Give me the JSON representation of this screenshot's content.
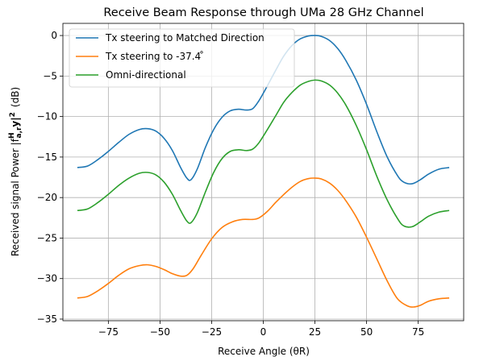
{
  "chart_data": {
    "type": "line",
    "title": "Receive Beam Response through UMa 28 GHz Channel",
    "xlabel": "Receive Angle (θR)",
    "ylabel_main": "Received signal Power |f",
    "ylabel_formula": "a,r",
    "ylabel_formula_sup": "H",
    "ylabel_tail": "y|",
    "ylabel_exp": "2",
    "ylabel_unit": "(dB)",
    "xlim": [
      -97,
      97
    ],
    "ylim": [
      -35.2,
      1.5
    ],
    "xticks": [
      -75,
      -50,
      -25,
      0,
      25,
      50,
      75
    ],
    "xtick_labels": [
      "−75",
      "−50",
      "−25",
      "0",
      "25",
      "50",
      "75"
    ],
    "yticks": [
      0,
      -5,
      -10,
      -15,
      -20,
      -25,
      -30,
      -35
    ],
    "ytick_labels": [
      "0",
      "−5",
      "−10",
      "−15",
      "−20",
      "−25",
      "−30",
      "−35"
    ],
    "grid": true,
    "legend_position": "top-left",
    "series": [
      {
        "name": "Tx steering to Matched Direction",
        "color": "#1f77b4",
        "points": [
          [
            -90,
            -16.3
          ],
          [
            -85,
            -16.1
          ],
          [
            -80,
            -15.3
          ],
          [
            -75,
            -14.3
          ],
          [
            -70,
            -13.2
          ],
          [
            -65,
            -12.2
          ],
          [
            -60,
            -11.6
          ],
          [
            -56,
            -11.5
          ],
          [
            -52,
            -11.8
          ],
          [
            -48,
            -12.7
          ],
          [
            -44,
            -14.2
          ],
          [
            -40,
            -16.3
          ],
          [
            -37,
            -17.6
          ],
          [
            -35,
            -17.8
          ],
          [
            -32,
            -16.5
          ],
          [
            -28,
            -13.8
          ],
          [
            -24,
            -11.6
          ],
          [
            -20,
            -10.1
          ],
          [
            -16,
            -9.3
          ],
          [
            -12,
            -9.1
          ],
          [
            -8,
            -9.2
          ],
          [
            -5,
            -9.0
          ],
          [
            -2,
            -8.0
          ],
          [
            2,
            -6.2
          ],
          [
            6,
            -4.3
          ],
          [
            10,
            -2.5
          ],
          [
            14,
            -1.2
          ],
          [
            18,
            -0.4
          ],
          [
            22,
            -0.05
          ],
          [
            25,
            0.0
          ],
          [
            28,
            -0.1
          ],
          [
            32,
            -0.6
          ],
          [
            36,
            -1.6
          ],
          [
            40,
            -3.1
          ],
          [
            45,
            -5.5
          ],
          [
            50,
            -8.5
          ],
          [
            55,
            -11.9
          ],
          [
            60,
            -15.0
          ],
          [
            65,
            -17.3
          ],
          [
            68,
            -18.1
          ],
          [
            72,
            -18.3
          ],
          [
            76,
            -17.8
          ],
          [
            80,
            -17.1
          ],
          [
            85,
            -16.5
          ],
          [
            90,
            -16.3
          ]
        ]
      },
      {
        "name": "Tx steering to -37.4 ̊",
        "color": "#ff7f0e",
        "points": [
          [
            -90,
            -32.4
          ],
          [
            -85,
            -32.2
          ],
          [
            -80,
            -31.5
          ],
          [
            -75,
            -30.6
          ],
          [
            -70,
            -29.6
          ],
          [
            -65,
            -28.8
          ],
          [
            -60,
            -28.4
          ],
          [
            -56,
            -28.3
          ],
          [
            -52,
            -28.5
          ],
          [
            -48,
            -28.9
          ],
          [
            -44,
            -29.4
          ],
          [
            -40,
            -29.7
          ],
          [
            -37,
            -29.6
          ],
          [
            -34,
            -28.8
          ],
          [
            -30,
            -27.1
          ],
          [
            -25,
            -25.1
          ],
          [
            -20,
            -23.7
          ],
          [
            -15,
            -23.0
          ],
          [
            -10,
            -22.7
          ],
          [
            -5,
            -22.7
          ],
          [
            -2,
            -22.5
          ],
          [
            2,
            -21.7
          ],
          [
            6,
            -20.6
          ],
          [
            10,
            -19.6
          ],
          [
            14,
            -18.7
          ],
          [
            18,
            -18.0
          ],
          [
            22,
            -17.65
          ],
          [
            25,
            -17.6
          ],
          [
            28,
            -17.7
          ],
          [
            32,
            -18.2
          ],
          [
            36,
            -19.1
          ],
          [
            40,
            -20.4
          ],
          [
            45,
            -22.4
          ],
          [
            50,
            -24.9
          ],
          [
            55,
            -27.6
          ],
          [
            60,
            -30.3
          ],
          [
            65,
            -32.5
          ],
          [
            70,
            -33.4
          ],
          [
            73,
            -33.5
          ],
          [
            76,
            -33.3
          ],
          [
            80,
            -32.8
          ],
          [
            85,
            -32.5
          ],
          [
            90,
            -32.4
          ]
        ]
      },
      {
        "name": "Omni-directional",
        "color": "#2ca02c",
        "points": [
          [
            -90,
            -21.6
          ],
          [
            -85,
            -21.4
          ],
          [
            -80,
            -20.6
          ],
          [
            -75,
            -19.6
          ],
          [
            -70,
            -18.5
          ],
          [
            -65,
            -17.6
          ],
          [
            -60,
            -17.0
          ],
          [
            -56,
            -16.9
          ],
          [
            -52,
            -17.2
          ],
          [
            -48,
            -18.1
          ],
          [
            -44,
            -19.6
          ],
          [
            -40,
            -21.6
          ],
          [
            -37,
            -22.9
          ],
          [
            -35,
            -23.1
          ],
          [
            -32,
            -21.9
          ],
          [
            -28,
            -19.3
          ],
          [
            -24,
            -16.9
          ],
          [
            -20,
            -15.2
          ],
          [
            -16,
            -14.3
          ],
          [
            -12,
            -14.1
          ],
          [
            -8,
            -14.2
          ],
          [
            -5,
            -14.0
          ],
          [
            -2,
            -13.2
          ],
          [
            2,
            -11.6
          ],
          [
            6,
            -9.9
          ],
          [
            10,
            -8.2
          ],
          [
            14,
            -7.0
          ],
          [
            18,
            -6.1
          ],
          [
            22,
            -5.65
          ],
          [
            25,
            -5.5
          ],
          [
            28,
            -5.6
          ],
          [
            32,
            -6.1
          ],
          [
            36,
            -7.1
          ],
          [
            40,
            -8.6
          ],
          [
            45,
            -11.1
          ],
          [
            50,
            -14.1
          ],
          [
            55,
            -17.4
          ],
          [
            60,
            -20.3
          ],
          [
            65,
            -22.6
          ],
          [
            68,
            -23.5
          ],
          [
            72,
            -23.6
          ],
          [
            76,
            -23.0
          ],
          [
            80,
            -22.3
          ],
          [
            85,
            -21.8
          ],
          [
            90,
            -21.6
          ]
        ]
      }
    ]
  }
}
